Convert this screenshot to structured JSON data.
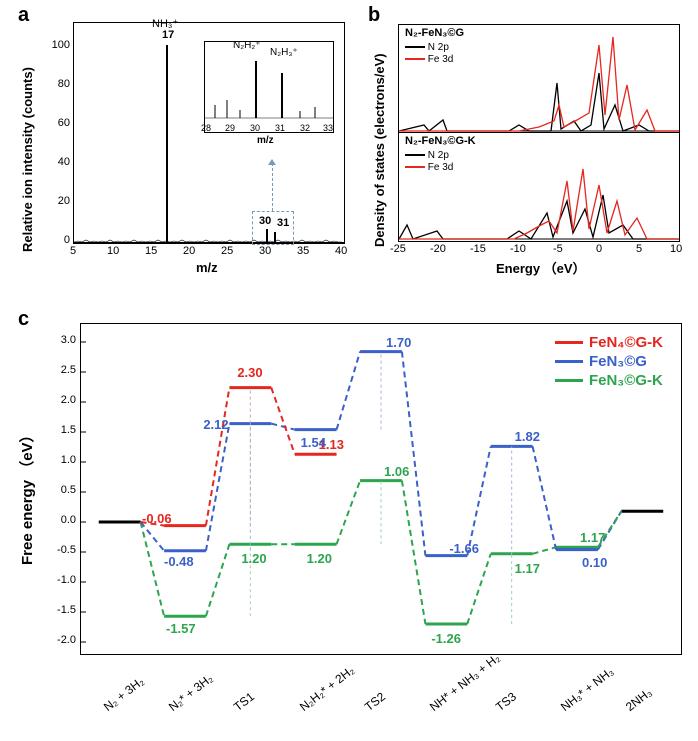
{
  "panel_a": {
    "label": "a",
    "ylabel": "Relative ion intensity (counts)",
    "xlabel": "m/z",
    "x_ticks": [
      5,
      10,
      15,
      20,
      25,
      30,
      35,
      40
    ],
    "y_ticks": [
      0,
      20,
      40,
      60,
      80,
      100
    ],
    "xlim": [
      5,
      40
    ],
    "ylim": [
      0,
      110
    ],
    "colors": {
      "axis": "#000",
      "line": "#000",
      "dashed_box": "#7a99b8"
    },
    "main_peak": {
      "mz": 17,
      "intensity": 100,
      "label_top": "NH₃⁺",
      "label_val": "17"
    },
    "secondary_peaks": [
      {
        "mz": 30,
        "intensity": 6,
        "label": "30"
      },
      {
        "mz": 31,
        "intensity": 5,
        "label": "31"
      }
    ],
    "inset": {
      "xlabel": "m/z",
      "x_ticks": [
        28,
        29,
        30,
        31,
        32,
        33
      ],
      "xlim": [
        28,
        33
      ],
      "peaks": [
        {
          "mz": 30,
          "height": 0.95,
          "label": "N₂H₂⁺"
        },
        {
          "mz": 31,
          "height": 0.7,
          "label": "N₂H₃⁺"
        }
      ]
    }
  },
  "panel_b": {
    "label": "b",
    "ylabel": "Density of states (electrons/eV)",
    "xlabel": "Energy （eV）",
    "x_ticks": [
      -25,
      -20,
      -15,
      -10,
      -5,
      0,
      5,
      10
    ],
    "xlim": [
      -25,
      10
    ],
    "sub": [
      {
        "title": "N₂-FeN₃©G",
        "legend": [
          {
            "label": "N 2p",
            "color": "#000"
          },
          {
            "label": "Fe 3d",
            "color": "#e4271f"
          }
        ]
      },
      {
        "title": "N₂-FeN₃©G-K",
        "legend": [
          {
            "label": "N 2p",
            "color": "#000"
          },
          {
            "label": "Fe 3d",
            "color": "#e4271f"
          }
        ]
      }
    ]
  },
  "panel_c": {
    "label": "c",
    "ylabel": "Free energy （eV）",
    "y_ticks": [
      -2.0,
      -1.5,
      -1.0,
      -0.5,
      0.0,
      0.5,
      1.0,
      1.5,
      2.0,
      2.5,
      3.0
    ],
    "ylim": [
      -2.2,
      3.3
    ],
    "stages": [
      "N₂ + 3H₂",
      "N₂* + 3H₂",
      "TS1",
      "N₂H₂* + 2H₂",
      "TS2",
      "NH* + NH₃ + H₂",
      "TS3",
      "NH₃* + NH₃",
      "2NH₃"
    ],
    "legend": [
      {
        "label": "FeN₄©G-K",
        "color": "#e4271f"
      },
      {
        "label": "FeN₃©G",
        "color": "#3a60c9"
      },
      {
        "label": "FeN₃©G-K",
        "color": "#2da44e"
      }
    ],
    "annotations": {
      "red": {
        "-0.06": [
          1,
          -0.06
        ],
        "2.30": [
          2,
          2.3
        ],
        "1.13": [
          3,
          1.13
        ]
      },
      "blue": {
        "-0.48": [
          1,
          -0.48
        ],
        "2.12": [
          2,
          2.12
        ],
        "1.54": [
          3,
          1.54
        ],
        "1.70": [
          4,
          1.7
        ],
        "-1.66": [
          5,
          -1.66
        ],
        "1.82": [
          6,
          1.82
        ],
        "0.10": [
          7,
          0.1
        ]
      },
      "green": {
        "-1.57": [
          1,
          -1.57
        ],
        "1.20a": [
          2,
          1.2
        ],
        "1.20b": [
          3,
          1.2
        ],
        "1.06": [
          4,
          1.06
        ],
        "-1.26": [
          5,
          -1.26
        ],
        "1.17a": [
          6,
          1.17
        ],
        "1.17b": [
          7,
          1.17
        ]
      }
    },
    "traces": {
      "black_start": {
        "color": "#000",
        "y": 0.0,
        "stage": 0
      },
      "black_end": {
        "color": "#000",
        "y": 0.18,
        "stage": 8
      },
      "red": {
        "color": "#e4271f",
        "levels": [
          -0.06,
          2.24,
          1.13
        ]
      },
      "blue": {
        "color": "#3a60c9",
        "levels": [
          -0.48,
          1.64,
          1.54,
          2.84,
          -0.56,
          1.26,
          -0.46
        ]
      },
      "green": {
        "color": "#2da44e",
        "levels": [
          -1.57,
          -0.37,
          -0.37,
          0.69,
          -1.7,
          -0.53,
          -0.42
        ]
      }
    },
    "connector_color_faded": "#b8c9e0"
  }
}
